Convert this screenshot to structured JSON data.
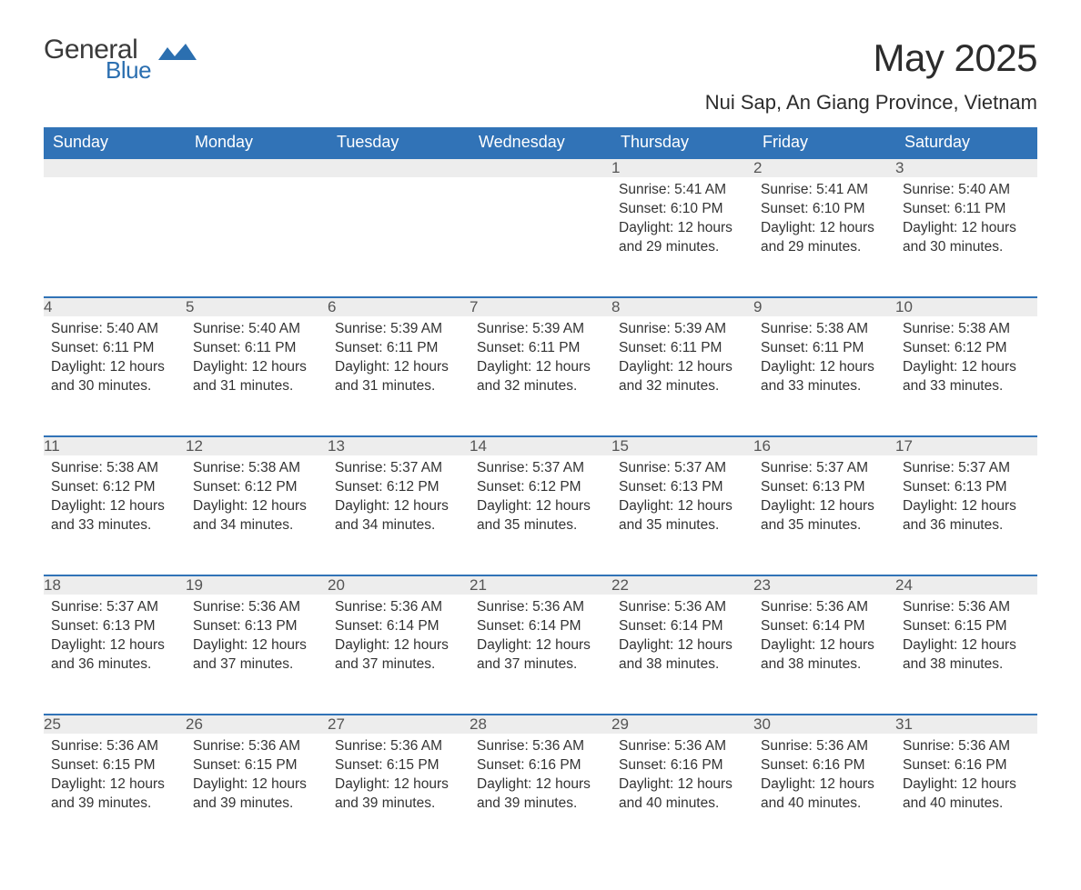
{
  "brand": {
    "part1": "General",
    "part2": "Blue",
    "accent_color": "#2b6fb0",
    "text_color": "#3a3a3a"
  },
  "title": "May 2025",
  "location": "Nui Sap, An Giang Province, Vietnam",
  "colors": {
    "header_bg": "#3173b7",
    "header_text": "#ffffff",
    "daynum_bg": "#ededed",
    "daynum_text": "#555555",
    "body_text": "#333333",
    "row_divider": "#3173b7"
  },
  "weekdays": [
    "Sunday",
    "Monday",
    "Tuesday",
    "Wednesday",
    "Thursday",
    "Friday",
    "Saturday"
  ],
  "weeks": [
    [
      null,
      null,
      null,
      null,
      {
        "n": "1",
        "sunrise": "5:41 AM",
        "sunset": "6:10 PM",
        "daylight": "12 hours and 29 minutes."
      },
      {
        "n": "2",
        "sunrise": "5:41 AM",
        "sunset": "6:10 PM",
        "daylight": "12 hours and 29 minutes."
      },
      {
        "n": "3",
        "sunrise": "5:40 AM",
        "sunset": "6:11 PM",
        "daylight": "12 hours and 30 minutes."
      }
    ],
    [
      {
        "n": "4",
        "sunrise": "5:40 AM",
        "sunset": "6:11 PM",
        "daylight": "12 hours and 30 minutes."
      },
      {
        "n": "5",
        "sunrise": "5:40 AM",
        "sunset": "6:11 PM",
        "daylight": "12 hours and 31 minutes."
      },
      {
        "n": "6",
        "sunrise": "5:39 AM",
        "sunset": "6:11 PM",
        "daylight": "12 hours and 31 minutes."
      },
      {
        "n": "7",
        "sunrise": "5:39 AM",
        "sunset": "6:11 PM",
        "daylight": "12 hours and 32 minutes."
      },
      {
        "n": "8",
        "sunrise": "5:39 AM",
        "sunset": "6:11 PM",
        "daylight": "12 hours and 32 minutes."
      },
      {
        "n": "9",
        "sunrise": "5:38 AM",
        "sunset": "6:11 PM",
        "daylight": "12 hours and 33 minutes."
      },
      {
        "n": "10",
        "sunrise": "5:38 AM",
        "sunset": "6:12 PM",
        "daylight": "12 hours and 33 minutes."
      }
    ],
    [
      {
        "n": "11",
        "sunrise": "5:38 AM",
        "sunset": "6:12 PM",
        "daylight": "12 hours and 33 minutes."
      },
      {
        "n": "12",
        "sunrise": "5:38 AM",
        "sunset": "6:12 PM",
        "daylight": "12 hours and 34 minutes."
      },
      {
        "n": "13",
        "sunrise": "5:37 AM",
        "sunset": "6:12 PM",
        "daylight": "12 hours and 34 minutes."
      },
      {
        "n": "14",
        "sunrise": "5:37 AM",
        "sunset": "6:12 PM",
        "daylight": "12 hours and 35 minutes."
      },
      {
        "n": "15",
        "sunrise": "5:37 AM",
        "sunset": "6:13 PM",
        "daylight": "12 hours and 35 minutes."
      },
      {
        "n": "16",
        "sunrise": "5:37 AM",
        "sunset": "6:13 PM",
        "daylight": "12 hours and 35 minutes."
      },
      {
        "n": "17",
        "sunrise": "5:37 AM",
        "sunset": "6:13 PM",
        "daylight": "12 hours and 36 minutes."
      }
    ],
    [
      {
        "n": "18",
        "sunrise": "5:37 AM",
        "sunset": "6:13 PM",
        "daylight": "12 hours and 36 minutes."
      },
      {
        "n": "19",
        "sunrise": "5:36 AM",
        "sunset": "6:13 PM",
        "daylight": "12 hours and 37 minutes."
      },
      {
        "n": "20",
        "sunrise": "5:36 AM",
        "sunset": "6:14 PM",
        "daylight": "12 hours and 37 minutes."
      },
      {
        "n": "21",
        "sunrise": "5:36 AM",
        "sunset": "6:14 PM",
        "daylight": "12 hours and 37 minutes."
      },
      {
        "n": "22",
        "sunrise": "5:36 AM",
        "sunset": "6:14 PM",
        "daylight": "12 hours and 38 minutes."
      },
      {
        "n": "23",
        "sunrise": "5:36 AM",
        "sunset": "6:14 PM",
        "daylight": "12 hours and 38 minutes."
      },
      {
        "n": "24",
        "sunrise": "5:36 AM",
        "sunset": "6:15 PM",
        "daylight": "12 hours and 38 minutes."
      }
    ],
    [
      {
        "n": "25",
        "sunrise": "5:36 AM",
        "sunset": "6:15 PM",
        "daylight": "12 hours and 39 minutes."
      },
      {
        "n": "26",
        "sunrise": "5:36 AM",
        "sunset": "6:15 PM",
        "daylight": "12 hours and 39 minutes."
      },
      {
        "n": "27",
        "sunrise": "5:36 AM",
        "sunset": "6:15 PM",
        "daylight": "12 hours and 39 minutes."
      },
      {
        "n": "28",
        "sunrise": "5:36 AM",
        "sunset": "6:16 PM",
        "daylight": "12 hours and 39 minutes."
      },
      {
        "n": "29",
        "sunrise": "5:36 AM",
        "sunset": "6:16 PM",
        "daylight": "12 hours and 40 minutes."
      },
      {
        "n": "30",
        "sunrise": "5:36 AM",
        "sunset": "6:16 PM",
        "daylight": "12 hours and 40 minutes."
      },
      {
        "n": "31",
        "sunrise": "5:36 AM",
        "sunset": "6:16 PM",
        "daylight": "12 hours and 40 minutes."
      }
    ]
  ],
  "labels": {
    "sunrise": "Sunrise: ",
    "sunset": "Sunset: ",
    "daylight": "Daylight: "
  }
}
